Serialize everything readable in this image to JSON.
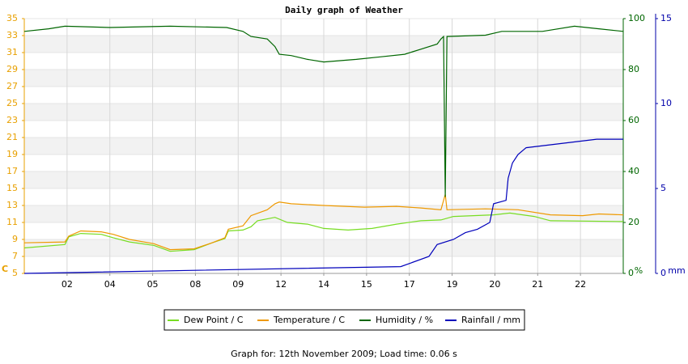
{
  "chart_data": {
    "type": "line",
    "title": "Daily graph of Weather",
    "y_label": "C",
    "y2_label": "%",
    "y3_label": "mm",
    "footer": "Graph for: 12th November 2009; Load time: 0.06 s",
    "xlim": [
      0,
      14
    ],
    "xticks": [
      {
        "value": 1,
        "label": "02"
      },
      {
        "value": 2,
        "label": "04"
      },
      {
        "value": 3,
        "label": "05"
      },
      {
        "value": 4,
        "label": "08"
      },
      {
        "value": 5,
        "label": "09"
      },
      {
        "value": 6,
        "label": "12"
      },
      {
        "value": 7,
        "label": "14"
      },
      {
        "value": 8,
        "label": "15"
      },
      {
        "value": 9,
        "label": "17"
      },
      {
        "value": 10,
        "label": "19"
      },
      {
        "value": 11,
        "label": "20"
      },
      {
        "value": 12,
        "label": "21"
      },
      {
        "value": 13,
        "label": "22"
      }
    ],
    "ylim": [
      5,
      35
    ],
    "yticks": [
      5,
      7,
      9,
      11,
      13,
      15,
      17,
      19,
      21,
      23,
      25,
      27,
      29,
      31,
      33,
      35
    ],
    "y2lim": [
      0,
      100
    ],
    "y2ticks": [
      0,
      20,
      40,
      60,
      80,
      100
    ],
    "y3lim": [
      0,
      15
    ],
    "y3ticks": [
      0,
      5,
      10,
      15
    ],
    "grid": true,
    "legend": "bottom",
    "y_color": "#e8a000",
    "y2_color": "#006600",
    "y3_color": "#0000aa",
    "series": [
      {
        "name": "Dew Point / C",
        "color": "#77dd22",
        "x": [
          0,
          0.95,
          1.04,
          1.32,
          1.8,
          2.08,
          2.46,
          3.03,
          3.41,
          3.97,
          4.39,
          4.69,
          4.77,
          5.11,
          5.3,
          5.45,
          5.86,
          6.15,
          6.62,
          7.0,
          7.57,
          8.13,
          8.7,
          9.27,
          9.74,
          10.03,
          10.97,
          11.35,
          11.92,
          12.3,
          14
        ],
        "values": [
          8.0,
          8.4,
          9.3,
          9.7,
          9.6,
          9.2,
          8.7,
          8.3,
          7.6,
          7.8,
          8.6,
          9.1,
          10.0,
          10.1,
          10.5,
          11.2,
          11.6,
          11.0,
          10.8,
          10.3,
          10.1,
          10.3,
          10.8,
          11.2,
          11.3,
          11.7,
          11.9,
          12.1,
          11.7,
          11.2,
          11.1
        ]
      },
      {
        "name": "Temperature / C",
        "color": "#ee9900",
        "x": [
          0,
          0.95,
          1.04,
          1.32,
          1.8,
          2.08,
          2.46,
          3.03,
          3.41,
          3.97,
          4.39,
          4.69,
          4.77,
          5.11,
          5.3,
          5.68,
          5.86,
          5.96,
          6.24,
          7.0,
          7.95,
          8.7,
          9.27,
          9.74,
          9.84,
          9.88,
          10.78,
          11.54,
          12.3,
          13.05,
          13.43,
          14
        ],
        "values": [
          8.6,
          8.7,
          9.4,
          10.0,
          9.9,
          9.6,
          9.0,
          8.5,
          7.8,
          7.9,
          8.6,
          9.2,
          10.2,
          10.6,
          11.8,
          12.5,
          13.2,
          13.4,
          13.2,
          13.0,
          12.8,
          12.9,
          12.7,
          12.5,
          14.3,
          12.5,
          12.6,
          12.5,
          11.9,
          11.8,
          12.0,
          11.9
        ]
      },
      {
        "name": "Humidity / %",
        "color": "#006600",
        "axis": "y2",
        "x": [
          0,
          0.57,
          0.95,
          2.0,
          3.41,
          4.73,
          5.11,
          5.3,
          5.68,
          5.86,
          5.96,
          6.24,
          6.62,
          7.0,
          7.76,
          8.32,
          8.89,
          9.27,
          9.65,
          9.74,
          9.8,
          9.84,
          9.88,
          10.78,
          11.16,
          12.11,
          12.3,
          12.86,
          13.43,
          14
        ],
        "values": [
          95,
          96,
          97,
          96.5,
          97,
          96.5,
          95,
          93,
          92,
          89,
          86,
          85.5,
          84,
          83,
          84,
          85,
          86,
          88,
          90,
          92,
          93,
          30,
          93,
          93.5,
          95,
          95,
          95.5,
          97,
          96,
          95
        ]
      },
      {
        "name": "Rainfall / mm",
        "color": "#0000bb",
        "axis": "y3",
        "x": [
          0,
          8.8,
          9.46,
          9.65,
          10.03,
          10.31,
          10.59,
          10.88,
          10.97,
          11.26,
          11.31,
          11.41,
          11.54,
          11.73,
          13.38,
          14
        ],
        "values": [
          0,
          0.4,
          1.0,
          1.7,
          2.0,
          2.4,
          2.6,
          3.0,
          4.1,
          4.3,
          5.6,
          6.5,
          7.0,
          7.4,
          7.9,
          7.9
        ]
      }
    ]
  }
}
